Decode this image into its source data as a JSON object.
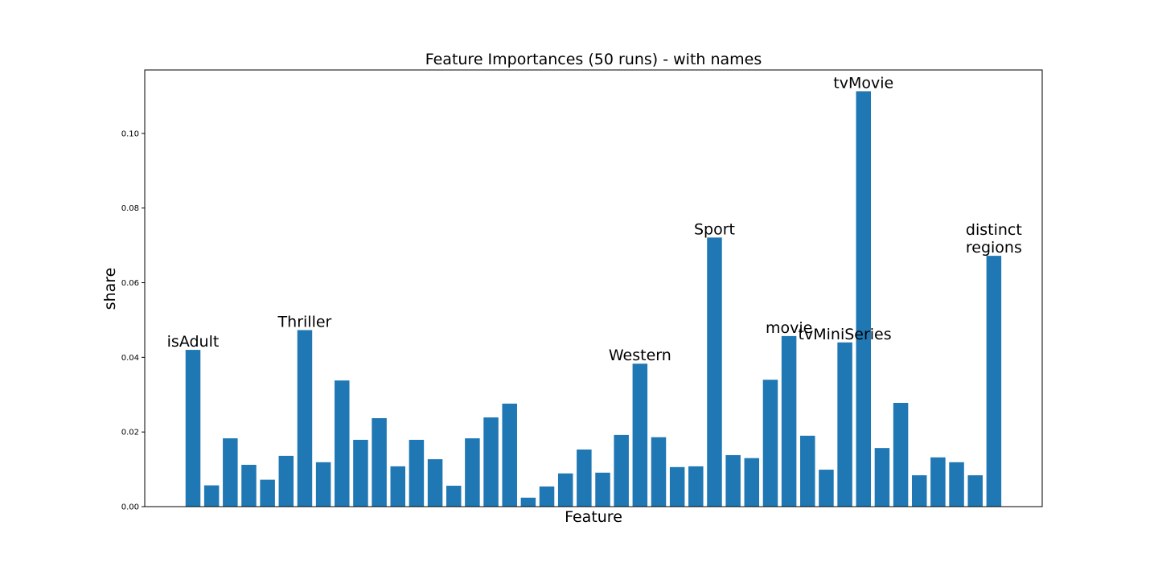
{
  "chart_data": {
    "type": "bar",
    "title": "Feature Importances (50 runs) - with names",
    "xlabel": "Feature",
    "ylabel": "share",
    "ylim": [
      0,
      0.117
    ],
    "yticks": [
      0.0,
      0.02,
      0.04,
      0.06,
      0.08,
      0.1
    ],
    "ytick_labels": [
      "0.00",
      "0.02",
      "0.04",
      "0.06",
      "0.08",
      "0.10"
    ],
    "grid": false,
    "legend": "none",
    "bar_color": "#1f77b4",
    "values": [
      0.042,
      0.0057,
      0.0183,
      0.0112,
      0.0072,
      0.0136,
      0.0473,
      0.0119,
      0.0338,
      0.0179,
      0.0237,
      0.0108,
      0.0179,
      0.0127,
      0.0056,
      0.0183,
      0.0239,
      0.0276,
      0.0024,
      0.0054,
      0.0089,
      0.0153,
      0.0091,
      0.0192,
      0.0383,
      0.0186,
      0.0106,
      0.0108,
      0.0721,
      0.0138,
      0.013,
      0.034,
      0.0457,
      0.019,
      0.0099,
      0.044,
      0.1113,
      0.0157,
      0.0278,
      0.0084,
      0.0132,
      0.0119,
      0.0084,
      0.0672
    ],
    "annotations": [
      {
        "index": 0,
        "lines": [
          "isAdult"
        ]
      },
      {
        "index": 6,
        "lines": [
          "Thriller"
        ]
      },
      {
        "index": 24,
        "lines": [
          "Western"
        ]
      },
      {
        "index": 28,
        "lines": [
          "Sport"
        ]
      },
      {
        "index": 32,
        "lines": [
          "movie"
        ]
      },
      {
        "index": 35,
        "lines": [
          "tvMiniSeries"
        ]
      },
      {
        "index": 36,
        "lines": [
          "tvMovie"
        ]
      },
      {
        "index": 43,
        "lines": [
          "distinct",
          "regions"
        ]
      }
    ]
  }
}
